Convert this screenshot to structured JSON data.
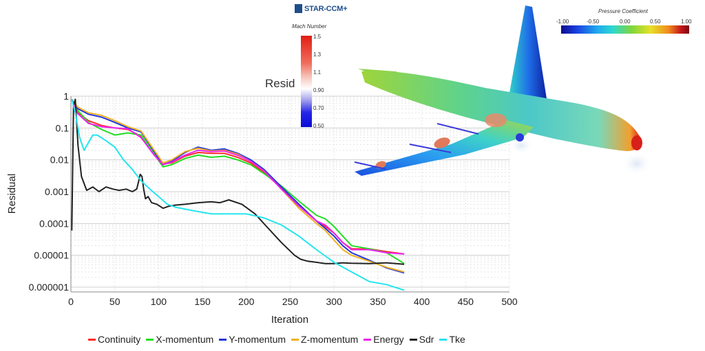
{
  "chart_data": {
    "type": "line",
    "title": "Resid",
    "xlabel": "Iteration",
    "ylabel": "Residual",
    "xlim": [
      0,
      500
    ],
    "ylim": [
      1e-06,
      1
    ],
    "yscale": "log",
    "grid": true,
    "x_ticks": [
      "0",
      "50",
      "100",
      "150",
      "200",
      "250",
      "300",
      "350",
      "400",
      "450",
      "500"
    ],
    "y_ticks": [
      "1",
      "0.1",
      "0.01",
      "0.001",
      "0.0001",
      "0.00001",
      "0.000001"
    ],
    "legend_position": "bottom",
    "series": [
      {
        "name": "Continuity",
        "color": "#ff2a2a",
        "x": [
          1,
          8,
          20,
          35,
          50,
          65,
          80,
          95,
          105,
          115,
          130,
          145,
          160,
          175,
          190,
          205,
          220,
          240,
          260,
          280,
          290,
          300,
          310,
          320,
          340,
          360,
          380
        ],
        "y": [
          0.8,
          0.3,
          0.17,
          0.12,
          0.1,
          0.09,
          0.055,
          0.015,
          0.0075,
          0.008,
          0.013,
          0.017,
          0.016,
          0.016,
          0.012,
          0.008,
          0.004,
          0.0013,
          0.0004,
          0.00012,
          8e-05,
          5e-05,
          2.5e-05,
          1.6e-05,
          1.6e-05,
          1.3e-05,
          1.1e-05
        ]
      },
      {
        "name": "X-momentum",
        "color": "#22dd22",
        "x": [
          1,
          8,
          20,
          35,
          50,
          65,
          80,
          95,
          105,
          115,
          130,
          145,
          160,
          175,
          190,
          205,
          220,
          240,
          260,
          280,
          290,
          300,
          310,
          320,
          340,
          360,
          380
        ],
        "y": [
          0.8,
          0.35,
          0.15,
          0.09,
          0.06,
          0.07,
          0.06,
          0.015,
          0.006,
          0.007,
          0.011,
          0.014,
          0.012,
          0.013,
          0.01,
          0.007,
          0.0037,
          0.0015,
          0.0005,
          0.00018,
          0.00014,
          8e-05,
          4e-05,
          2e-05,
          1.6e-05,
          1.2e-05,
          5.5e-06
        ]
      },
      {
        "name": "Y-momentum",
        "color": "#2233dd",
        "x": [
          1,
          8,
          20,
          35,
          50,
          65,
          80,
          95,
          105,
          115,
          130,
          145,
          160,
          175,
          190,
          205,
          220,
          240,
          260,
          280,
          290,
          300,
          310,
          320,
          340,
          360,
          380
        ],
        "y": [
          0.8,
          0.4,
          0.27,
          0.22,
          0.15,
          0.1,
          0.075,
          0.018,
          0.007,
          0.009,
          0.017,
          0.025,
          0.02,
          0.022,
          0.016,
          0.01,
          0.005,
          0.0014,
          0.0004,
          0.00012,
          7e-05,
          4e-05,
          2e-05,
          1.2e-05,
          7e-06,
          4e-06,
          2.8e-06
        ]
      },
      {
        "name": "Z-momentum",
        "color": "#f0b020",
        "x": [
          1,
          8,
          20,
          35,
          50,
          65,
          80,
          95,
          105,
          115,
          130,
          145,
          160,
          175,
          190,
          205,
          220,
          240,
          260,
          280,
          290,
          300,
          310,
          320,
          340,
          360,
          380
        ],
        "y": [
          0.8,
          0.45,
          0.3,
          0.25,
          0.17,
          0.11,
          0.08,
          0.02,
          0.008,
          0.01,
          0.018,
          0.023,
          0.019,
          0.02,
          0.015,
          0.009,
          0.0045,
          0.0012,
          0.0003,
          0.0001,
          6e-05,
          3e-05,
          1.5e-05,
          1e-05,
          6.5e-06,
          4.2e-06,
          3e-06
        ]
      },
      {
        "name": "Energy",
        "color": "#ee22ee",
        "x": [
          1,
          8,
          20,
          35,
          50,
          65,
          80,
          95,
          105,
          115,
          130,
          145,
          160,
          175,
          190,
          205,
          220,
          240,
          260,
          280,
          290,
          300,
          310,
          320,
          340,
          360,
          380
        ],
        "y": [
          0.8,
          0.28,
          0.14,
          0.11,
          0.1,
          0.095,
          0.05,
          0.014,
          0.007,
          0.0085,
          0.014,
          0.02,
          0.018,
          0.019,
          0.014,
          0.009,
          0.0045,
          0.0012,
          0.00035,
          0.00012,
          9e-05,
          5e-05,
          2.5e-05,
          1.5e-05,
          1.5e-05,
          1.2e-05,
          1.1e-05
        ]
      },
      {
        "name": "Sdr",
        "color": "#222222",
        "x": [
          1,
          3,
          5,
          8,
          12,
          18,
          25,
          32,
          40,
          48,
          55,
          63,
          70,
          75,
          77,
          79,
          81,
          83,
          85,
          88,
          92,
          98,
          105,
          112,
          120,
          130,
          145,
          160,
          170,
          180,
          195,
          210,
          225,
          240,
          255,
          262,
          270,
          280,
          290,
          300,
          310,
          320,
          340,
          360,
          380
        ],
        "y": [
          6e-05,
          0.5,
          0.8,
          0.03,
          0.003,
          0.0011,
          0.0014,
          0.001,
          0.0014,
          0.0012,
          0.0011,
          0.0012,
          0.001,
          0.0012,
          0.002,
          0.0035,
          0.003,
          0.0012,
          0.0006,
          0.0007,
          0.00045,
          0.0004,
          0.0003,
          0.00035,
          0.00038,
          0.0004,
          0.00045,
          0.00048,
          0.00045,
          0.00055,
          0.0004,
          0.0002,
          7e-05,
          2.5e-05,
          1e-05,
          7.5e-06,
          6.5e-06,
          6e-06,
          5.5e-06,
          5.5e-06,
          5.8e-06,
          5.6e-06,
          5.5e-06,
          5.8e-06,
          5.2e-06
        ]
      },
      {
        "name": "Tke",
        "color": "#22e5ee",
        "x": [
          1,
          5,
          10,
          15,
          20,
          25,
          30,
          40,
          50,
          60,
          70,
          80,
          90,
          100,
          110,
          120,
          140,
          160,
          180,
          200,
          220,
          240,
          260,
          280,
          300,
          320,
          340,
          360,
          380
        ],
        "y": [
          0.8,
          0.3,
          0.05,
          0.02,
          0.035,
          0.06,
          0.06,
          0.04,
          0.025,
          0.01,
          0.005,
          0.0022,
          0.0012,
          0.0007,
          0.0004,
          0.00032,
          0.00025,
          0.0002,
          0.0002,
          0.0002,
          0.00015,
          9e-05,
          4e-05,
          1.5e-05,
          6e-06,
          3e-06,
          1.5e-06,
          1.2e-06,
          8e-07
        ]
      }
    ]
  },
  "overlay": {
    "logo_text": "STAR-CCM+",
    "mach_colorbar": {
      "title": "Mach Number",
      "ticks": [
        "1.5",
        "1.3",
        "1.1",
        "0.90",
        "0.70",
        "0.50"
      ]
    },
    "pressure_colorbar": {
      "title": "Pressure Coefficient",
      "ticks": [
        "-1.00",
        "-0.50",
        "0.00",
        "0.50",
        "1.00"
      ]
    }
  }
}
